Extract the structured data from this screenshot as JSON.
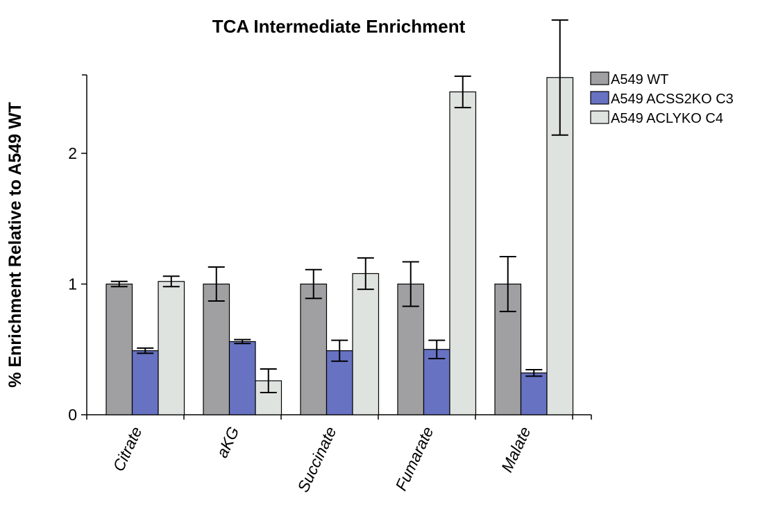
{
  "chart_data": {
    "type": "bar",
    "title": "TCA Intermediate Enrichment",
    "xlabel": "",
    "ylabel": "% Enrichment Relative to A549 WT",
    "categories": [
      "Citrate",
      "aKG",
      "Succinate",
      "Fumarate",
      "Malate"
    ],
    "ylim": [
      0,
      2.6
    ],
    "yticks": [
      0,
      1,
      2
    ],
    "series": [
      {
        "name": "A549 WT",
        "color": "#a0a0a3",
        "values": [
          1.0,
          1.0,
          1.0,
          1.0,
          1.0
        ],
        "errors": [
          0.02,
          0.13,
          0.11,
          0.17,
          0.21
        ]
      },
      {
        "name": "A549 ACSS2KO C3",
        "color": "#6772c2",
        "values": [
          0.49,
          0.56,
          0.49,
          0.5,
          0.32
        ],
        "errors": [
          0.02,
          0.015,
          0.08,
          0.07,
          0.025
        ]
      },
      {
        "name": "A549 ACLYKO C4",
        "color": "#dfe3e0",
        "values": [
          1.02,
          0.26,
          1.08,
          2.47,
          2.58
        ],
        "errors": [
          0.04,
          0.09,
          0.12,
          0.12,
          0.44
        ]
      }
    ],
    "legend": "top-right",
    "grid": false
  }
}
